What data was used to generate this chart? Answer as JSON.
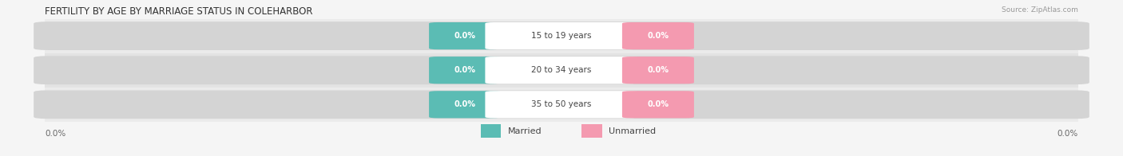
{
  "title": "FERTILITY BY AGE BY MARRIAGE STATUS IN COLEHARBOR",
  "source": "Source: ZipAtlas.com",
  "categories": [
    "15 to 19 years",
    "20 to 34 years",
    "35 to 50 years"
  ],
  "married_values": [
    0.0,
    0.0,
    0.0
  ],
  "unmarried_values": [
    0.0,
    0.0,
    0.0
  ],
  "married_color": "#5bbcb4",
  "unmarried_color": "#f49ab0",
  "row_bg_colors": [
    "#ebebeb",
    "#e2e2e2",
    "#ebebeb"
  ],
  "pill_bg_color": "#d8d8d8",
  "center_label_color": "#ffffff",
  "title_fontsize": 8.5,
  "value_fontsize": 7.0,
  "cat_fontsize": 7.5,
  "axis_val_fontsize": 7.5,
  "legend_fontsize": 8.0,
  "left_axis_label": "0.0%",
  "right_axis_label": "0.0%",
  "background_color": "#f5f5f5"
}
